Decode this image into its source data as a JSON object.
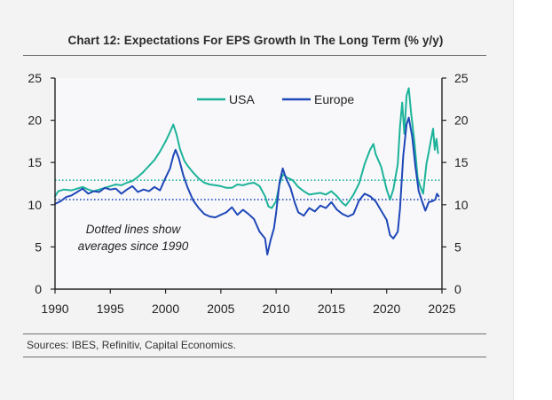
{
  "title": "Chart 12: Expectations For EPS Growth In The Long Term (% y/y)",
  "sources": "Sources: IBES, Refinitiv, Capital Economics.",
  "annotation": [
    "Dotted lines show",
    "averages since 1990"
  ],
  "colors": {
    "usa": "#1db39a",
    "europe": "#1f48b8"
  },
  "chart_data": {
    "type": "line",
    "title": "Chart 12: Expectations For EPS Growth In The Long Term (% y/y)",
    "x_ticks": [
      "1990",
      "1995",
      "2000",
      "2005",
      "2010",
      "2015",
      "2020",
      "2025"
    ],
    "y_ticks": [
      "0",
      "5",
      "10",
      "15",
      "20",
      "25"
    ],
    "xlim": [
      1990,
      2025
    ],
    "ylim": [
      0,
      25
    ],
    "legend_placement": "top",
    "grid": false,
    "series": [
      {
        "name": "USA",
        "color": "#1db39a",
        "average": 12.9,
        "points": [
          [
            1990.0,
            11.0
          ],
          [
            1990.3,
            11.6
          ],
          [
            1990.8,
            11.8
          ],
          [
            1991.5,
            11.7
          ],
          [
            1992.0,
            11.9
          ],
          [
            1992.5,
            12.1
          ],
          [
            1993.0,
            11.8
          ],
          [
            1993.5,
            11.6
          ],
          [
            1994.0,
            11.8
          ],
          [
            1994.5,
            12.0
          ],
          [
            1995.0,
            12.2
          ],
          [
            1995.5,
            12.4
          ],
          [
            1996.0,
            12.3
          ],
          [
            1996.5,
            12.6
          ],
          [
            1997.0,
            12.8
          ],
          [
            1997.5,
            13.3
          ],
          [
            1998.0,
            13.9
          ],
          [
            1998.5,
            14.6
          ],
          [
            1999.0,
            15.3
          ],
          [
            1999.5,
            16.3
          ],
          [
            2000.0,
            17.5
          ],
          [
            2000.4,
            18.6
          ],
          [
            2000.7,
            19.5
          ],
          [
            2001.0,
            18.3
          ],
          [
            2001.3,
            16.6
          ],
          [
            2001.7,
            15.2
          ],
          [
            2002.0,
            14.6
          ],
          [
            2002.5,
            13.8
          ],
          [
            2003.0,
            13.1
          ],
          [
            2003.5,
            12.6
          ],
          [
            2004.0,
            12.4
          ],
          [
            2004.5,
            12.3
          ],
          [
            2005.0,
            12.2
          ],
          [
            2005.5,
            12.0
          ],
          [
            2006.0,
            12.0
          ],
          [
            2006.5,
            12.4
          ],
          [
            2007.0,
            12.3
          ],
          [
            2007.5,
            12.5
          ],
          [
            2008.0,
            12.6
          ],
          [
            2008.5,
            12.2
          ],
          [
            2009.0,
            11.0
          ],
          [
            2009.3,
            9.8
          ],
          [
            2009.6,
            9.6
          ],
          [
            2010.0,
            10.4
          ],
          [
            2010.3,
            12.4
          ],
          [
            2010.6,
            13.6
          ],
          [
            2011.0,
            13.2
          ],
          [
            2011.5,
            12.9
          ],
          [
            2012.0,
            12.1
          ],
          [
            2012.5,
            11.6
          ],
          [
            2013.0,
            11.2
          ],
          [
            2013.5,
            11.3
          ],
          [
            2014.0,
            11.4
          ],
          [
            2014.5,
            11.2
          ],
          [
            2015.0,
            11.6
          ],
          [
            2015.5,
            11.0
          ],
          [
            2016.0,
            10.2
          ],
          [
            2016.3,
            9.9
          ],
          [
            2016.7,
            10.6
          ],
          [
            2017.0,
            11.2
          ],
          [
            2017.5,
            12.5
          ],
          [
            2018.0,
            14.8
          ],
          [
            2018.5,
            16.5
          ],
          [
            2018.8,
            17.2
          ],
          [
            2019.0,
            16.0
          ],
          [
            2019.5,
            14.5
          ],
          [
            2020.0,
            11.8
          ],
          [
            2020.3,
            10.6
          ],
          [
            2020.6,
            11.8
          ],
          [
            2021.0,
            14.8
          ],
          [
            2021.2,
            19.2
          ],
          [
            2021.4,
            22.1
          ],
          [
            2021.6,
            18.4
          ],
          [
            2021.8,
            22.9
          ],
          [
            2022.0,
            23.8
          ],
          [
            2022.2,
            21.0
          ],
          [
            2022.5,
            17.5
          ],
          [
            2022.8,
            13.2
          ],
          [
            2023.0,
            12.3
          ],
          [
            2023.3,
            11.3
          ],
          [
            2023.6,
            14.9
          ],
          [
            2023.8,
            16.2
          ],
          [
            2024.0,
            17.6
          ],
          [
            2024.2,
            19.0
          ],
          [
            2024.35,
            16.5
          ],
          [
            2024.5,
            17.8
          ],
          [
            2024.65,
            16.1
          ]
        ]
      },
      {
        "name": "Europe",
        "color": "#1f48b8",
        "average": 10.6,
        "points": [
          [
            1990.0,
            10.1
          ],
          [
            1990.5,
            10.4
          ],
          [
            1991.0,
            10.9
          ],
          [
            1991.5,
            11.1
          ],
          [
            1992.0,
            11.5
          ],
          [
            1992.5,
            11.9
          ],
          [
            1993.0,
            11.3
          ],
          [
            1993.5,
            11.6
          ],
          [
            1994.0,
            11.5
          ],
          [
            1994.5,
            12.0
          ],
          [
            1995.0,
            11.8
          ],
          [
            1995.5,
            11.9
          ],
          [
            1996.0,
            11.3
          ],
          [
            1996.5,
            11.8
          ],
          [
            1997.0,
            12.2
          ],
          [
            1997.5,
            11.5
          ],
          [
            1998.0,
            11.8
          ],
          [
            1998.5,
            11.6
          ],
          [
            1999.0,
            12.1
          ],
          [
            1999.5,
            11.7
          ],
          [
            2000.0,
            13.2
          ],
          [
            2000.4,
            14.3
          ],
          [
            2000.7,
            15.8
          ],
          [
            2000.9,
            16.5
          ],
          [
            2001.2,
            15.5
          ],
          [
            2001.6,
            13.5
          ],
          [
            2002.0,
            12.0
          ],
          [
            2002.5,
            10.5
          ],
          [
            2003.0,
            9.6
          ],
          [
            2003.5,
            8.9
          ],
          [
            2004.0,
            8.6
          ],
          [
            2004.5,
            8.5
          ],
          [
            2005.0,
            8.8
          ],
          [
            2005.5,
            9.1
          ],
          [
            2006.0,
            9.7
          ],
          [
            2006.5,
            8.8
          ],
          [
            2007.0,
            9.4
          ],
          [
            2007.5,
            8.9
          ],
          [
            2008.0,
            8.3
          ],
          [
            2008.5,
            6.8
          ],
          [
            2009.0,
            6.0
          ],
          [
            2009.2,
            4.1
          ],
          [
            2009.5,
            5.8
          ],
          [
            2009.8,
            7.2
          ],
          [
            2010.0,
            9.0
          ],
          [
            2010.3,
            12.6
          ],
          [
            2010.6,
            14.3
          ],
          [
            2010.9,
            13.1
          ],
          [
            2011.3,
            12.0
          ],
          [
            2011.7,
            10.2
          ],
          [
            2012.0,
            9.1
          ],
          [
            2012.5,
            8.7
          ],
          [
            2013.0,
            9.6
          ],
          [
            2013.5,
            9.2
          ],
          [
            2014.0,
            9.9
          ],
          [
            2014.5,
            9.6
          ],
          [
            2015.0,
            10.3
          ],
          [
            2015.5,
            9.4
          ],
          [
            2016.0,
            8.9
          ],
          [
            2016.5,
            8.6
          ],
          [
            2017.0,
            8.9
          ],
          [
            2017.5,
            10.5
          ],
          [
            2018.0,
            11.3
          ],
          [
            2018.5,
            11.0
          ],
          [
            2019.0,
            10.4
          ],
          [
            2019.5,
            9.3
          ],
          [
            2020.0,
            8.2
          ],
          [
            2020.3,
            6.4
          ],
          [
            2020.6,
            6.0
          ],
          [
            2021.0,
            6.8
          ],
          [
            2021.2,
            9.5
          ],
          [
            2021.5,
            15.8
          ],
          [
            2021.8,
            19.5
          ],
          [
            2022.0,
            20.3
          ],
          [
            2022.3,
            18.1
          ],
          [
            2022.6,
            14.5
          ],
          [
            2022.9,
            11.6
          ],
          [
            2023.2,
            10.4
          ],
          [
            2023.5,
            9.3
          ],
          [
            2023.8,
            10.3
          ],
          [
            2024.1,
            10.4
          ],
          [
            2024.4,
            10.6
          ],
          [
            2024.55,
            11.3
          ],
          [
            2024.7,
            11.0
          ]
        ]
      }
    ]
  }
}
